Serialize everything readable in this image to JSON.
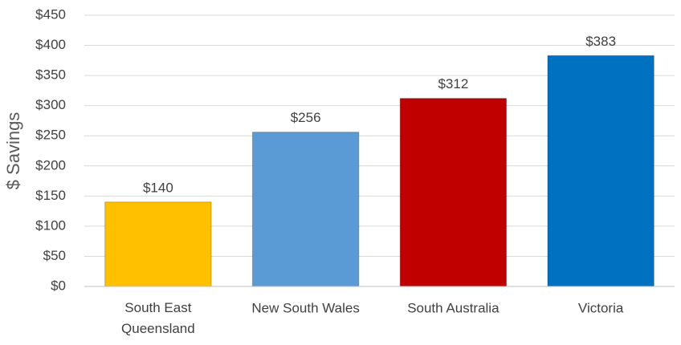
{
  "chart_data": {
    "type": "bar",
    "y_label": "$ Savings",
    "categories": [
      "South East\nQueensland",
      "New South Wales",
      "South Australia",
      "Victoria"
    ],
    "values": [
      140,
      256,
      312,
      383
    ],
    "value_labels": [
      "$140",
      "$256",
      "$312",
      "$383"
    ],
    "colors": [
      "#ffc000",
      "#5b9bd5",
      "#c00000",
      "#0070c0"
    ],
    "ylim": [
      0,
      450
    ],
    "yticks": [
      {
        "value": 0,
        "label": "$0"
      },
      {
        "value": 50,
        "label": "$50"
      },
      {
        "value": 100,
        "label": "$100"
      },
      {
        "value": 150,
        "label": "$150"
      },
      {
        "value": 200,
        "label": "$200"
      },
      {
        "value": 250,
        "label": "$250"
      },
      {
        "value": 300,
        "label": "$300"
      },
      {
        "value": 350,
        "label": "$350"
      },
      {
        "value": 400,
        "label": "$400"
      },
      {
        "value": 450,
        "label": "$450"
      }
    ],
    "grid": true
  }
}
